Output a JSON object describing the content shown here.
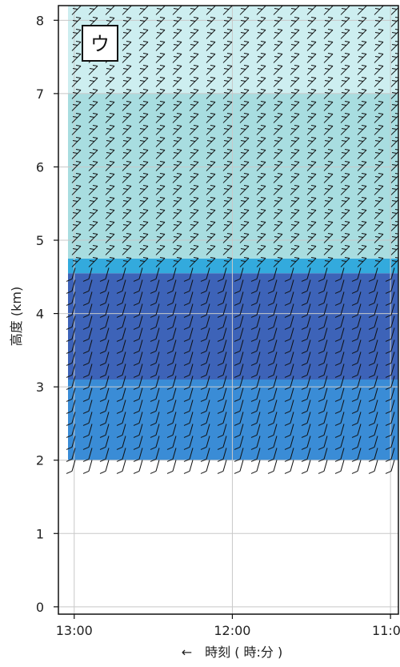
{
  "chart_data": {
    "type": "heatmap",
    "panel_label": "ウ",
    "ylabel": "高度 (km)",
    "xlabel": "←　時刻 ( 時:分 )",
    "x_ticks": [
      "13:00",
      "12:00",
      "11:00"
    ],
    "y_ticks": [
      "0",
      "1",
      "2",
      "3",
      "4",
      "5",
      "6",
      "7",
      "8"
    ],
    "xlim_hours": [
      13.1,
      10.95
    ],
    "ylim_km": [
      -0.1,
      8.2
    ],
    "x_axis_reversed": true,
    "grid": true,
    "legend": "none",
    "data_top_km": 8.2,
    "data_bottom_km": 2.0,
    "wind_barbs_altitude_range_km": [
      1.85,
      8.2
    ],
    "color_layers": [
      {
        "from_km": 2.0,
        "to_km": 3.1,
        "color": "#3a8cd6"
      },
      {
        "from_km": 3.1,
        "to_km": 4.55,
        "color": "#3d63b8"
      },
      {
        "from_km": 4.55,
        "to_km": 4.75,
        "color": "#33aadd"
      },
      {
        "from_km": 4.75,
        "to_km": 7.0,
        "color": "#a8dde0"
      },
      {
        "from_km": 7.0,
        "to_km": 8.2,
        "color": "#cdeef0"
      }
    ],
    "colors": {
      "frame": "#111111",
      "grid": "#c8c8c8",
      "barb": "#111111",
      "no_data": "#ffffff"
    }
  }
}
